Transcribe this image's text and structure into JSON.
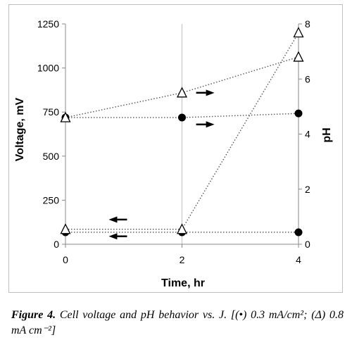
{
  "chart_data": {
    "type": "scatter",
    "x_axis": {
      "label": "Time, hr",
      "ticks": [
        "0",
        "2",
        "4"
      ],
      "range": [
        0,
        4
      ]
    },
    "y_axis_left": {
      "label": "Voltage, mV",
      "ticks": [
        "0",
        "250",
        "500",
        "750",
        "1000",
        "1250"
      ],
      "range": [
        0,
        1250
      ]
    },
    "y_axis_right": {
      "label": "pH",
      "ticks": [
        "0",
        "2",
        "4",
        "6",
        "8"
      ],
      "range": [
        0,
        8
      ]
    },
    "grid": "vertical lines at each x tick",
    "line_style": "dotted",
    "series": [
      {
        "marker": "filled-circle",
        "axis": "left",
        "x": [
          0,
          2,
          4
        ],
        "y": [
          68,
          68,
          68
        ]
      },
      {
        "marker": "open-triangle",
        "axis": "left",
        "x": [
          0,
          2,
          4
        ],
        "y": [
          85,
          85,
          1200
        ]
      },
      {
        "marker": "filled-circle",
        "axis": "right",
        "x": [
          0,
          2,
          4
        ],
        "y": [
          4.6,
          4.6,
          4.75
        ]
      },
      {
        "marker": "open-triangle",
        "axis": "right",
        "x": [
          0,
          2,
          4
        ],
        "y": [
          4.6,
          5.5,
          6.8
        ]
      }
    ],
    "arrows": [
      {
        "direction": "right",
        "x": 2.4,
        "y": 5.5,
        "axis": "right"
      },
      {
        "direction": "right",
        "x": 2.4,
        "y": 4.35,
        "axis": "right"
      },
      {
        "direction": "left",
        "x": 0.9,
        "y": 140,
        "axis": "left"
      },
      {
        "direction": "left",
        "x": 0.9,
        "y": 45,
        "axis": "left"
      }
    ]
  },
  "caption": {
    "label": "Figure 4.",
    "text": "Cell voltage and pH behavior vs. J. [(•) 0.3 mA/cm²; (Δ) 0.8 mA cm⁻²]"
  },
  "colors": {
    "marker": "#000000",
    "line": "#555555",
    "grid": "#bfbfbf"
  }
}
